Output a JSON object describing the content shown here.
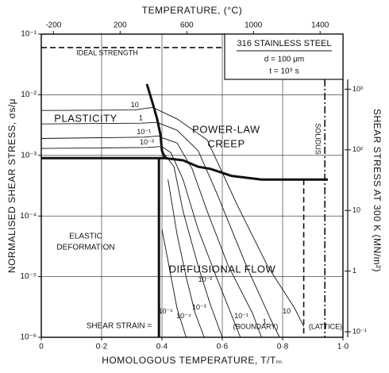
{
  "chart_data": {
    "type": "line",
    "x_label": "HOMOLOGOUS TEMPERATURE, T/Tₘ",
    "x2_label": "TEMPERATURE, (°C)",
    "y_label": "NORMALISED SHEAR STRESS, σs/μ",
    "y2_label": "SHEAR STRESS AT 300 K (MN/m²)",
    "xlim": [
      0,
      1
    ],
    "xticks": [
      0,
      {
        "value": 0.2,
        "label": "0·2"
      },
      {
        "value": 0.4,
        "label": "0·4"
      },
      {
        "value": 0.6,
        "label": "0·6"
      },
      {
        "value": 0.8,
        "label": "0·8"
      },
      {
        "value": 1,
        "label": "1·0"
      }
    ],
    "ylim": [
      1e-06,
      0.1
    ],
    "log_y": true,
    "yticks": [
      {
        "value": 1e-06,
        "label": "10⁻⁶"
      },
      {
        "value": 1e-05,
        "label": "10⁻⁵"
      },
      {
        "value": 0.0001,
        "label": "10⁻⁴"
      },
      {
        "value": 0.001,
        "label": "10⁻³"
      },
      {
        "value": 0.01,
        "label": "10⁻²"
      },
      {
        "value": 0.1,
        "label": "10⁻¹"
      }
    ],
    "x2lim": [
      -273,
      1537
    ],
    "x2ticks": [
      -200,
      200,
      600,
      1000,
      1400
    ],
    "y2lim": [
      0.081,
      8100
    ],
    "y2ticks": [
      {
        "value": 1000,
        "label": "10³"
      },
      {
        "value": 100,
        "label": "10²"
      },
      10,
      1,
      {
        "value": 0.1,
        "label": "10⁻¹"
      }
    ],
    "grid": true,
    "color": "#111111",
    "box": {
      "title": "316 STAINLESS STEEL",
      "lines": [
        "d = 100 μm",
        "t = 10⁹ s"
      ]
    },
    "annotations": {
      "ideal": "IDEAL STRENGTH",
      "plasticity": "PLASTICITY",
      "power_law": "POWER-LAW",
      "creep": "CREEP",
      "elastic": "ELASTIC",
      "deformation": "DEFORMATION",
      "diffusional": "DIFFUSIONAL FLOW",
      "solidus": "SOLIDUS",
      "shear_strain": "SHEAR STRAIN =",
      "boundary": "(BOUNDARY)",
      "lattice": "(LATTICE)"
    },
    "boundaries": [
      {
        "style": "solid",
        "weight": "thick",
        "x": [
          0.35,
          0.37,
          0.384,
          0.395,
          0.4,
          0.41
        ],
        "y": [
          0.015,
          0.007,
          0.004,
          0.0022,
          0.0012,
          0.0009
        ]
      },
      {
        "style": "solid",
        "weight": "thick",
        "x": [
          0,
          0.41
        ],
        "y": [
          0.0009,
          0.0009
        ]
      },
      {
        "style": "solid",
        "weight": "thick",
        "x": [
          0.41,
          0.47,
          0.52,
          0.56,
          0.63,
          0.73,
          0.95
        ],
        "y": [
          0.0009,
          0.00083,
          0.00065,
          0.0006,
          0.00046,
          0.0004,
          0.0004
        ]
      },
      {
        "style": "solid",
        "weight": "thick",
        "x": [
          0.39,
          0.39
        ],
        "y": [
          0.0009,
          1e-06
        ]
      },
      {
        "style": "dashed",
        "weight": "medium",
        "x": [
          0.87,
          0.87
        ],
        "y": [
          0.0004,
          1e-06
        ]
      },
      {
        "style": "dashdot",
        "weight": "medium",
        "x": [
          0.94,
          0.94
        ],
        "y": [
          0.018,
          1e-06
        ]
      },
      {
        "style": "dashed",
        "weight": "medium",
        "x": [
          0,
          0.6
        ],
        "y": [
          0.06,
          0.06
        ]
      }
    ],
    "plasticity_contours": [
      {
        "name": "10",
        "x": [
          0,
          0.31,
          0.37
        ],
        "y": [
          0.0055,
          0.0056,
          0.0062
        ]
      },
      {
        "name": "1",
        "x": [
          0,
          0.33,
          0.388
        ],
        "y": [
          0.0033,
          0.0034,
          0.0035
        ]
      },
      {
        "name": "10⁻¹",
        "x": [
          0,
          0.34,
          0.395
        ],
        "y": [
          0.0019,
          0.002,
          0.0021
        ]
      },
      {
        "name": "10⁻³",
        "x": [
          0,
          0.35,
          0.4
        ],
        "y": [
          0.0013,
          0.00135,
          0.0014
        ]
      }
    ],
    "contours": [
      {
        "name": "10",
        "x": [
          0.375,
          0.45,
          0.55,
          0.65,
          0.75,
          0.84,
          0.87
        ],
        "y": [
          0.006,
          0.004,
          0.0018,
          0.00015,
          1.5e-05,
          3e-06,
          1.5e-06
        ]
      },
      {
        "name": "1",
        "x": [
          0.39,
          0.45,
          0.52,
          0.58,
          0.68,
          0.76,
          0.79
        ],
        "y": [
          0.0034,
          0.0026,
          0.0012,
          0.00025,
          1.5e-05,
          2e-06,
          1e-06
        ]
      },
      {
        "name": "10⁻¹",
        "x": [
          0.395,
          0.45,
          0.5,
          0.55,
          0.62,
          0.7,
          0.73
        ],
        "y": [
          0.002,
          0.0016,
          0.0006,
          0.00012,
          1.5e-05,
          2.5e-06,
          1e-06
        ]
      },
      {
        "name": "10⁻²",
        "x": [
          0.4,
          0.43,
          0.47,
          0.52,
          0.58,
          0.66
        ],
        "y": [
          0.0014,
          0.0011,
          0.0004,
          6e-05,
          1e-05,
          1e-06
        ]
      },
      {
        "name": "10⁻³",
        "x": [
          0.405,
          0.44,
          0.47,
          0.52,
          0.56,
          0.6
        ],
        "y": [
          0.0011,
          0.00065,
          0.00012,
          1.5e-05,
          3.5e-06,
          1e-06
        ]
      },
      {
        "name": "10⁻⁴",
        "x": [
          0.42,
          0.45,
          0.48,
          0.51,
          0.54
        ],
        "y": [
          0.0004,
          5e-05,
          1e-05,
          2.5e-06,
          1e-06
        ]
      },
      {
        "name": "10⁻⁵",
        "x": [
          0.4,
          0.43,
          0.45,
          0.48
        ],
        "y": [
          6e-05,
          1e-05,
          3e-06,
          1e-06
        ]
      }
    ]
  }
}
